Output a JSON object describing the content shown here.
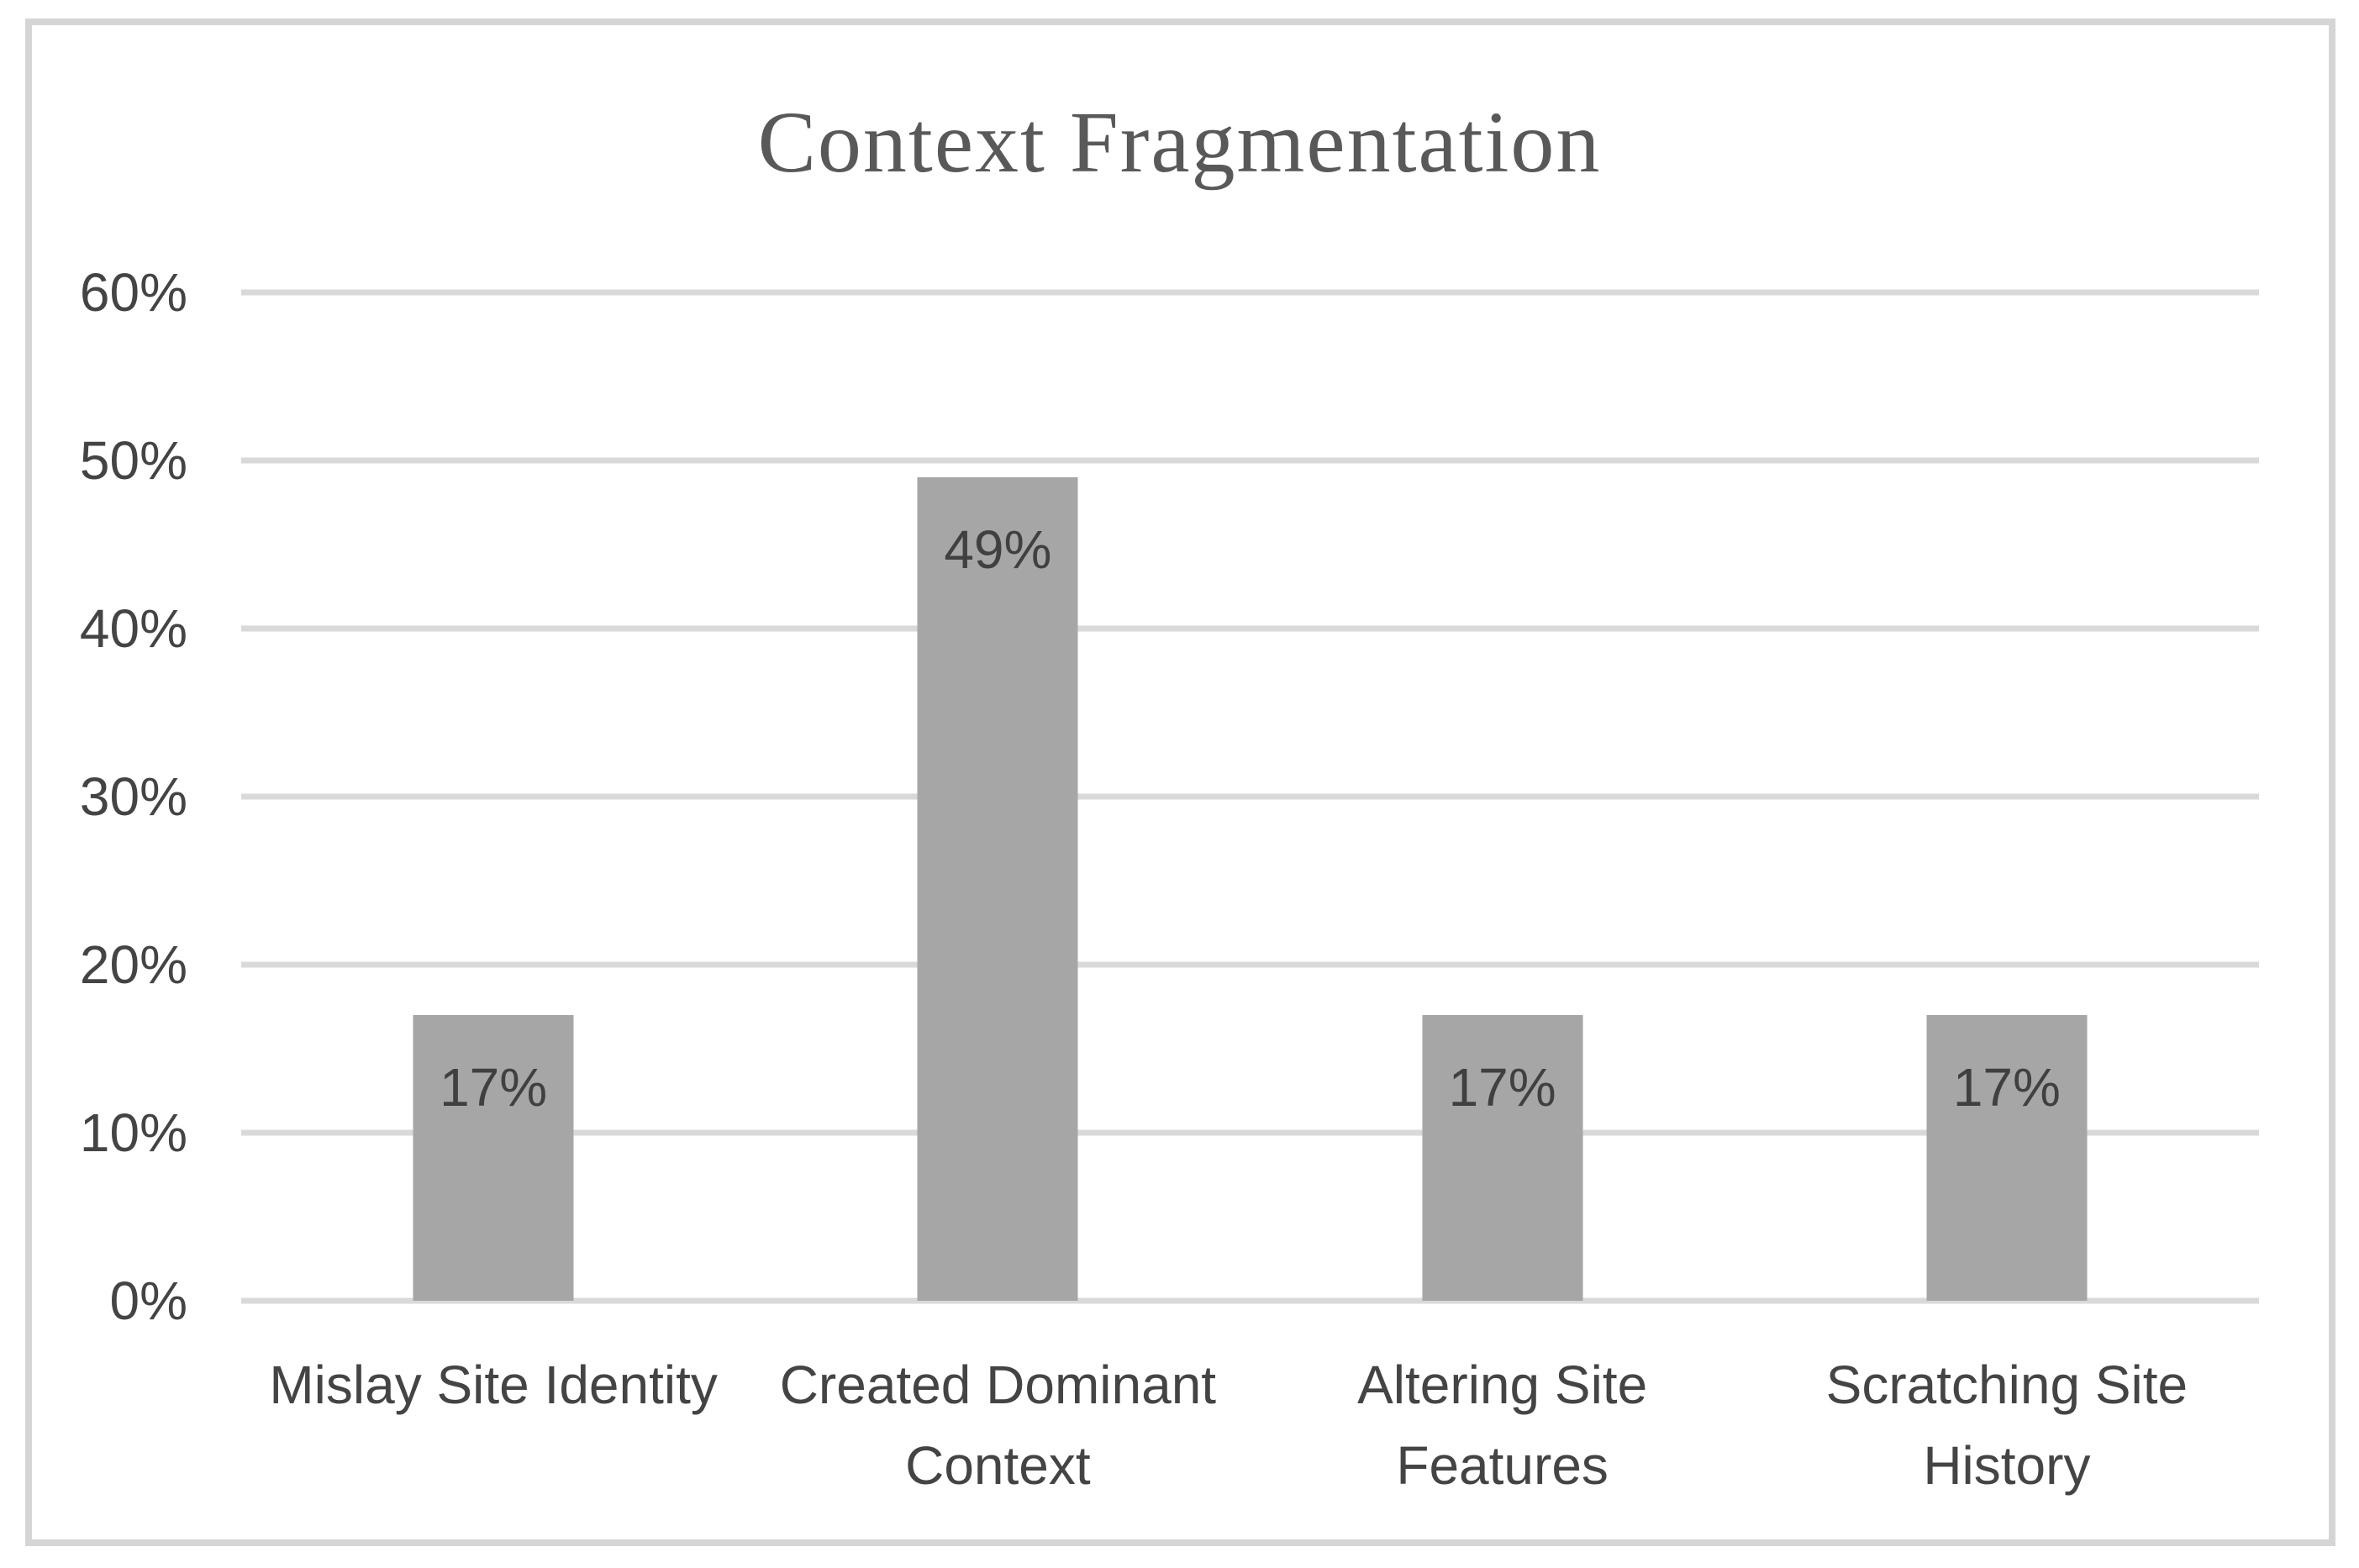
{
  "chart_data": {
    "type": "bar",
    "title": "Context Fragmentation",
    "categories": [
      "Mislay Site Identity",
      "Created Dominant Context",
      "Altering Site Features",
      "Scratching Site History"
    ],
    "categories_lines": [
      [
        "Mislay Site Identity"
      ],
      [
        "Created Dominant",
        "Context"
      ],
      [
        "Altering Site",
        "Features"
      ],
      [
        "Scratching Site",
        "History"
      ]
    ],
    "values": [
      17,
      49,
      17,
      17
    ],
    "value_labels": [
      "17%",
      "49%",
      "17%",
      "17%"
    ],
    "xlabel": "",
    "ylabel": "",
    "ylim": [
      0,
      60
    ],
    "yticks": [
      0,
      10,
      20,
      30,
      40,
      50,
      60
    ],
    "ytick_labels": [
      "0%",
      "10%",
      "20%",
      "30%",
      "40%",
      "50%",
      "60%"
    ],
    "grid": "horizontal-only",
    "legend": "none",
    "data_label_position": "inside-end",
    "colors": {
      "background": "#ffffff",
      "frame_border": "#d5d5d5",
      "gridline": "#d9d9d9",
      "bar_fill": "#a6a6a6",
      "title_text": "#595959",
      "axis_text": "#444444",
      "data_label_text": "#404040"
    }
  }
}
